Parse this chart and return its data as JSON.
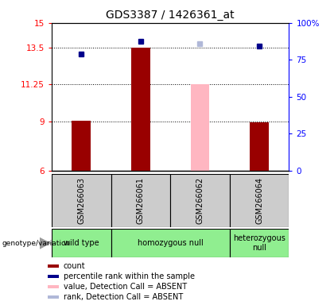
{
  "title": "GDS3387 / 1426361_at",
  "samples": [
    "GSM266063",
    "GSM266061",
    "GSM266062",
    "GSM266064"
  ],
  "x_positions": [
    1,
    2,
    3,
    4
  ],
  "ylim": [
    6,
    15
  ],
  "yticks_left": [
    6,
    9,
    11.25,
    13.5,
    15
  ],
  "yticks_right": [
    0,
    25,
    50,
    75,
    100
  ],
  "ytick_right_labels": [
    "0",
    "25",
    "50",
    "75",
    "100%"
  ],
  "bar_values": [
    9.05,
    13.5,
    11.25,
    8.95
  ],
  "bar_colors": [
    "#990000",
    "#990000",
    "#ffb6c1",
    "#990000"
  ],
  "bar_bottom": 6,
  "dot_values": [
    13.1,
    13.87,
    13.75,
    13.57
  ],
  "dot_colors": [
    "#00008B",
    "#00008B",
    "#b0b8d8",
    "#00008B"
  ],
  "genotype_groups": [
    {
      "label": "wild type",
      "xstart": 0.5,
      "xend": 1.5
    },
    {
      "label": "homozygous null",
      "xstart": 1.5,
      "xend": 3.5
    },
    {
      "label": "heterozygous\nnull",
      "xstart": 3.5,
      "xend": 4.5
    }
  ],
  "legend_items": [
    {
      "color": "#990000",
      "label": "count"
    },
    {
      "color": "#00008B",
      "label": "percentile rank within the sample"
    },
    {
      "color": "#ffb6c1",
      "label": "value, Detection Call = ABSENT"
    },
    {
      "color": "#b0b8d8",
      "label": "rank, Detection Call = ABSENT"
    }
  ],
  "genotype_label": "genotype/variation",
  "bg_color": "#ffffff",
  "gray_box_color": "#cccccc",
  "green_box_color": "#90EE90",
  "title_fontsize": 10,
  "tick_fontsize": 7.5,
  "sample_fontsize": 7,
  "geno_fontsize": 7,
  "legend_fontsize": 7
}
